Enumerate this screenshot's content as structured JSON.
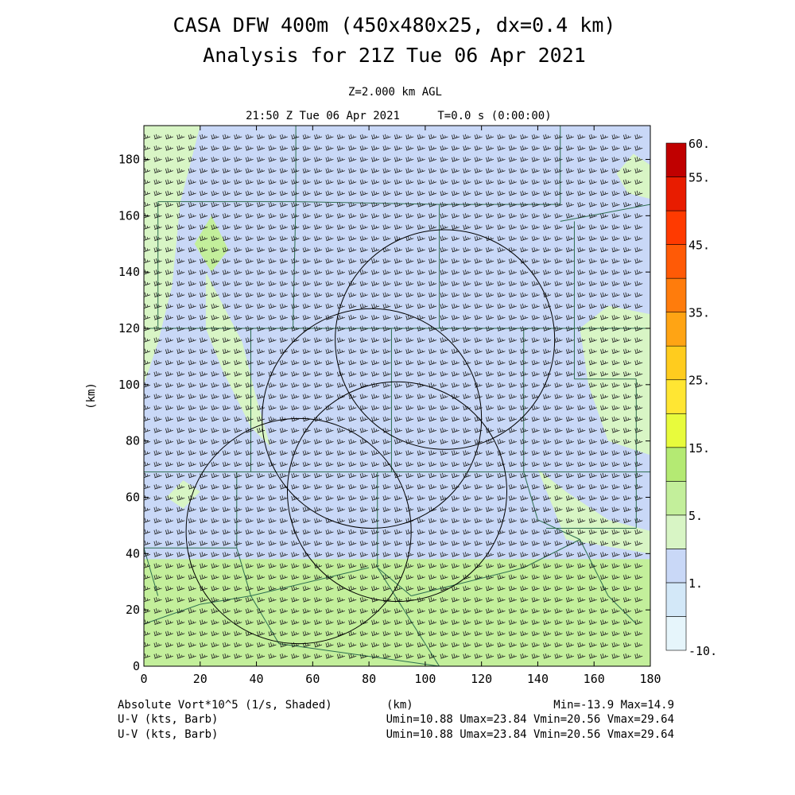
{
  "header": {
    "title_line1": "CASA DFW 400m (450x480x25, dx=0.4 km)",
    "title_line2": "Analysis for 21Z Tue 06 Apr 2021",
    "level": "Z=2.000 km AGL",
    "valid_time": "21:50 Z Tue 06 Apr 2021",
    "forecast_time": "T=0.0 s (0:00:00)"
  },
  "footer": {
    "field_label": "Absolute Vort*10^5 (1/s, Shaded)",
    "xunit": "(km)",
    "field_range": "Min=-13.9 Max=14.9",
    "barb_rows": [
      {
        "label": "U-V (kts, Barb)",
        "stats": "Umin=10.88 Umax=23.84 Vmin=20.56 Vmax=29.64"
      },
      {
        "label": "U-V (kts, Barb)",
        "stats": "Umin=10.88 Umax=23.84 Vmin=20.56 Vmax=29.64"
      }
    ]
  },
  "chart_data": {
    "type": "heatmap",
    "xlabel": "",
    "ylabel": "(km)",
    "xlim": [
      0,
      180
    ],
    "ylim": [
      0,
      192
    ],
    "xticks": [
      0,
      20,
      40,
      60,
      80,
      100,
      120,
      140,
      160,
      180
    ],
    "yticks": [
      0,
      20,
      40,
      60,
      80,
      100,
      120,
      140,
      160,
      180
    ],
    "xtick_labels": [
      "0",
      "20",
      "40",
      "60",
      "80",
      "100",
      "120",
      "140",
      "160",
      "180"
    ],
    "ytick_labels": [
      "0",
      "20",
      "40",
      "60",
      "80",
      "100",
      "120",
      "140",
      "160",
      "180"
    ],
    "colorbar": {
      "levels": [
        -10,
        -1,
        1,
        3,
        5,
        10,
        15,
        20,
        25,
        30,
        35,
        40,
        45,
        50,
        55,
        60
      ],
      "labels": [
        {
          "value": 60,
          "text": "60."
        },
        {
          "value": 55,
          "text": "55."
        },
        {
          "value": 45,
          "text": "45."
        },
        {
          "value": 35,
          "text": "35."
        },
        {
          "value": 25,
          "text": "25."
        },
        {
          "value": 15,
          "text": "15."
        },
        {
          "value": 5,
          "text": "5."
        },
        {
          "value": 1,
          "text": "1."
        },
        {
          "value": -10,
          "text": "-10."
        }
      ],
      "colors": [
        "#e6f5fb",
        "#d3e8f8",
        "#c9d8f7",
        "#d8f5c5",
        "#c3ef9b",
        "#b4ea73",
        "#e8fb3c",
        "#ffe633",
        "#ffcc1e",
        "#ffa414",
        "#ff7c0c",
        "#ff5a06",
        "#ff3a00",
        "#e81c00",
        "#c00000"
      ]
    },
    "shaded_regions": [
      {
        "level": 3,
        "points": [
          [
            0,
            100
          ],
          [
            5,
            115
          ],
          [
            10,
            135
          ],
          [
            13,
            165
          ],
          [
            20,
            192
          ],
          [
            0,
            192
          ]
        ]
      },
      {
        "level": 3,
        "points": [
          [
            22,
            140
          ],
          [
            35,
            115
          ],
          [
            40,
            95
          ],
          [
            45,
            78
          ],
          [
            38,
            85
          ],
          [
            28,
            105
          ],
          [
            22,
            120
          ]
        ]
      },
      {
        "level": 3,
        "points": [
          [
            155,
            120
          ],
          [
            165,
            128
          ],
          [
            180,
            125
          ],
          [
            180,
            75
          ],
          [
            165,
            80
          ],
          [
            158,
            100
          ]
        ]
      },
      {
        "level": 3,
        "points": [
          [
            140,
            70
          ],
          [
            150,
            62
          ],
          [
            165,
            52
          ],
          [
            180,
            48
          ],
          [
            180,
            40
          ],
          [
            150,
            45
          ]
        ]
      },
      {
        "level": 3,
        "points": [
          [
            168,
            175
          ],
          [
            174,
            182
          ],
          [
            180,
            178
          ],
          [
            180,
            166
          ],
          [
            172,
            168
          ]
        ]
      },
      {
        "level": 3,
        "points": [
          [
            8,
            60
          ],
          [
            14,
            66
          ],
          [
            20,
            62
          ],
          [
            14,
            56
          ]
        ]
      },
      {
        "level": 5,
        "points": [
          [
            0,
            38
          ],
          [
            180,
            38
          ],
          [
            180,
            0
          ],
          [
            0,
            0
          ]
        ]
      },
      {
        "level": 5,
        "points": [
          [
            18,
            150
          ],
          [
            24,
            160
          ],
          [
            30,
            148
          ],
          [
            24,
            140
          ]
        ]
      }
    ],
    "range_rings": [
      {
        "center": [
          107,
          116
        ],
        "radius": 39
      },
      {
        "center": [
          81,
          88
        ],
        "radius": 39
      },
      {
        "center": [
          90,
          62
        ],
        "radius": 39
      },
      {
        "center": [
          55,
          48
        ],
        "radius": 40
      }
    ],
    "county_lines": [
      [
        [
          0,
          120
        ],
        [
          180,
          120
        ]
      ],
      [
        [
          0,
          69
        ],
        [
          180,
          69
        ]
      ],
      [
        [
          5,
          165
        ],
        [
          5,
          120
        ]
      ],
      [
        [
          5,
          165
        ],
        [
          54,
          165
        ]
      ],
      [
        [
          54,
          192
        ],
        [
          54,
          165
        ]
      ],
      [
        [
          54,
          165
        ],
        [
          53,
          120
        ]
      ],
      [
        [
          54,
          165
        ],
        [
          105,
          164
        ]
      ],
      [
        [
          105,
          164
        ],
        [
          148,
          164
        ]
      ],
      [
        [
          148,
          164
        ],
        [
          148,
          192
        ]
      ],
      [
        [
          148,
          158
        ],
        [
          180,
          164
        ]
      ],
      [
        [
          105,
          164
        ],
        [
          105,
          120
        ]
      ],
      [
        [
          153,
          158
        ],
        [
          153,
          120
        ]
      ],
      [
        [
          38,
          120
        ],
        [
          38,
          69
        ]
      ],
      [
        [
          88,
          120
        ],
        [
          88,
          69
        ]
      ],
      [
        [
          135,
          120
        ],
        [
          135,
          69
        ]
      ],
      [
        [
          153,
          120
        ],
        [
          153,
          102
        ]
      ],
      [
        [
          153,
          102
        ],
        [
          175,
          102
        ]
      ],
      [
        [
          175,
          102
        ],
        [
          175,
          49
        ]
      ],
      [
        [
          143,
          49
        ],
        [
          175,
          49
        ]
      ],
      [
        [
          33,
          69
        ],
        [
          33,
          42
        ]
      ],
      [
        [
          0,
          42
        ],
        [
          33,
          42
        ]
      ],
      [
        [
          33,
          42
        ],
        [
          38,
          25
        ]
      ],
      [
        [
          38,
          25
        ],
        [
          80,
          35
        ]
      ],
      [
        [
          83,
          69
        ],
        [
          83,
          35
        ]
      ],
      [
        [
          83,
          35
        ],
        [
          105,
          0
        ]
      ],
      [
        [
          83,
          35
        ],
        [
          95,
          25
        ]
      ],
      [
        [
          95,
          25
        ],
        [
          135,
          35
        ]
      ],
      [
        [
          135,
          35
        ],
        [
          155,
          45
        ]
      ],
      [
        [
          155,
          45
        ],
        [
          165,
          25
        ]
      ],
      [
        [
          165,
          25
        ],
        [
          175,
          15
        ]
      ],
      [
        [
          135,
          69
        ],
        [
          140,
          52
        ]
      ],
      [
        [
          140,
          52
        ],
        [
          155,
          45
        ]
      ],
      [
        [
          0,
          15
        ],
        [
          20,
          22
        ]
      ],
      [
        [
          20,
          22
        ],
        [
          38,
          25
        ]
      ],
      [
        [
          38,
          25
        ],
        [
          48,
          8
        ]
      ],
      [
        [
          48,
          8
        ],
        [
          105,
          0
        ]
      ],
      [
        [
          0,
          42
        ],
        [
          5,
          25
        ]
      ]
    ],
    "wind": {
      "units": "kts",
      "u_range": [
        10.88,
        23.84
      ],
      "v_range": [
        20.56,
        29.64
      ]
    }
  }
}
